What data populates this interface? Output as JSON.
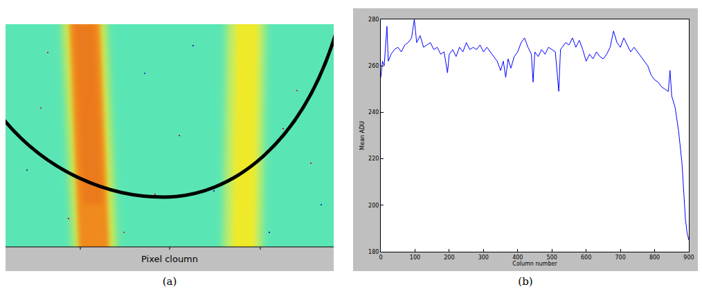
{
  "image_panel": {
    "caption": "(a)",
    "xlabel": "Pixel cloumn"
  },
  "chart_data": {
    "type": "line",
    "caption": "(b)",
    "xlabel": "Column number",
    "ylabel": "Mean ADU",
    "color": "#0000ff",
    "grid": false,
    "xlim": [
      0,
      900
    ],
    "ylim": [
      180,
      280
    ],
    "xticks": [
      0,
      100,
      200,
      300,
      400,
      500,
      600,
      700,
      800,
      900
    ],
    "yticks": [
      180,
      200,
      220,
      240,
      260,
      280
    ],
    "x": [
      0,
      5,
      10,
      18,
      22,
      30,
      40,
      50,
      60,
      70,
      80,
      90,
      98,
      105,
      115,
      125,
      135,
      145,
      155,
      165,
      175,
      185,
      195,
      200,
      210,
      220,
      230,
      240,
      250,
      260,
      270,
      280,
      290,
      300,
      310,
      320,
      330,
      340,
      350,
      358,
      365,
      372,
      380,
      390,
      400,
      410,
      420,
      430,
      440,
      445,
      450,
      460,
      470,
      480,
      490,
      500,
      510,
      520,
      525,
      530,
      540,
      550,
      560,
      570,
      580,
      590,
      600,
      610,
      620,
      630,
      640,
      650,
      660,
      670,
      680,
      690,
      700,
      710,
      720,
      730,
      740,
      750,
      760,
      770,
      780,
      790,
      800,
      810,
      820,
      830,
      840,
      845,
      850,
      860,
      870,
      880,
      885,
      890,
      895,
      900
    ],
    "values": [
      255,
      262,
      260,
      277,
      262,
      265,
      267,
      268,
      266,
      269,
      270,
      272,
      280,
      270,
      273,
      268,
      269,
      270,
      267,
      268,
      265,
      266,
      257,
      265,
      267,
      264,
      268,
      266,
      270,
      267,
      268,
      267,
      269,
      266,
      268,
      266,
      264,
      262,
      258,
      262,
      255,
      263,
      259,
      264,
      266,
      270,
      272,
      268,
      265,
      253,
      266,
      264,
      267,
      265,
      268,
      267,
      266,
      249,
      267,
      268,
      270,
      269,
      272,
      268,
      271,
      267,
      262,
      265,
      263,
      266,
      264,
      263,
      265,
      268,
      275,
      270,
      268,
      272,
      269,
      266,
      268,
      266,
      264,
      262,
      260,
      256,
      254,
      253,
      251,
      250,
      249,
      258,
      247,
      242,
      232,
      218,
      205,
      194,
      188,
      185
    ]
  }
}
